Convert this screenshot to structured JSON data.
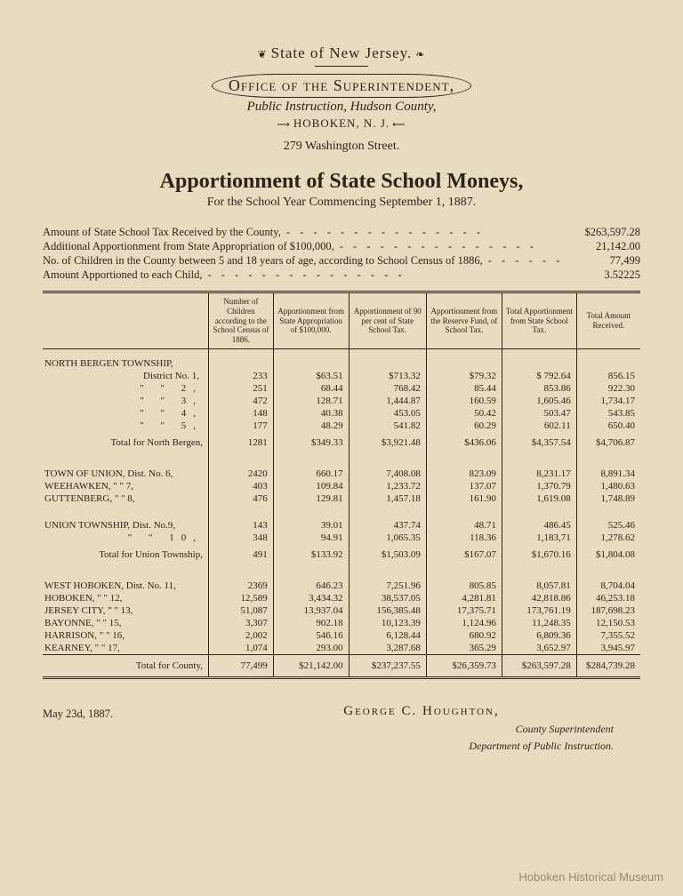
{
  "header": {
    "state": "State of New Jersey.",
    "office": "Office of the Superintendent,",
    "office_sub": "Public Instruction, Hudson County,",
    "city": "HOBOKEN, N. J.",
    "address": "279 Washington Street."
  },
  "title": "Apportionment of State School Moneys,",
  "subtitle": "For the School Year Commencing September 1, 1887.",
  "summary": [
    {
      "label": "Amount of State School Tax Received by the County,",
      "value": "$263,597.28"
    },
    {
      "label": "Additional Apportionment from State Appropriation of $100,000,",
      "value": "21,142.00"
    },
    {
      "label": "No. of Children in the County between 5 and 18 years of age, according to School Census of 1886,",
      "value": "77,499"
    },
    {
      "label": "Amount Apportioned to each Child,",
      "value": "3.52225"
    }
  ],
  "columns": [
    "",
    "Number of Children according to the School Census of 1886.",
    "Apportionment from State Appropriation of $100,000.",
    "Apportionment of 90 per cent of State School Tax.",
    "Apportionment from the Reserve Fund, of School Tax.",
    "Total Apportionment from State School Tax.",
    "Total Amount Received."
  ],
  "sections": [
    {
      "label": "NORTH BERGEN TOWNSHIP,",
      "rows": [
        {
          "name": "District No. 1,",
          "c": [
            "233",
            "$63.51",
            "$713.32",
            "$79.32",
            "$ 792.64",
            "856.15"
          ]
        },
        {
          "name": "\"   \"   2,",
          "c": [
            "251",
            "68.44",
            "768.42",
            "85.44",
            "853.86",
            "922.30"
          ]
        },
        {
          "name": "\"   \"   3,",
          "c": [
            "472",
            "128.71",
            "1,444.87",
            "160.59",
            "1,605.46",
            "1,734.17"
          ]
        },
        {
          "name": "\"   \"   4,",
          "c": [
            "148",
            "40.38",
            "453.05",
            "50.42",
            "503.47",
            "543.85"
          ]
        },
        {
          "name": "\"   \"   5,",
          "c": [
            "177",
            "48.29",
            "541.82",
            "60.29",
            "602.11",
            "650.40"
          ]
        }
      ],
      "total": {
        "name": "Total for North Bergen,",
        "c": [
          "1281",
          "$349.33",
          "$3,921.48",
          "$436.06",
          "$4,357.54",
          "$4,706.87"
        ]
      }
    },
    {
      "label": "",
      "rows": [
        {
          "name": "TOWN OF UNION, Dist. No. 6,",
          "c": [
            "2420",
            "660.17",
            "7,408.08",
            "823.09",
            "8,231.17",
            "8,891.34"
          ]
        },
        {
          "name": "WEEHAWKEN,   \"   \"   7,",
          "c": [
            "403",
            "109.84",
            "1,233.72",
            "137.07",
            "1,370.79",
            "1,480.63"
          ]
        },
        {
          "name": "GUTTENBERG,   \"   \"   8,",
          "c": [
            "476",
            "129.81",
            "1,457.18",
            "161.90",
            "1,619.08",
            "1,748.89"
          ]
        }
      ]
    },
    {
      "label": "",
      "rows": [
        {
          "name": "UNION TOWNSHIP, Dist. No.9,",
          "c": [
            "143",
            "39.01",
            "437.74",
            "48.71",
            "486.45",
            "525.46"
          ]
        },
        {
          "name": "\"   \"   10,",
          "c": [
            "348",
            "94.91",
            "1,065.35",
            "118.36",
            "1,183,71",
            "1,278.62"
          ]
        }
      ],
      "total": {
        "name": "Total for Union Township,",
        "c": [
          "491",
          "$133.92",
          "$1,503.09",
          "$167.07",
          "$1,670.16",
          "$1,804.08"
        ]
      }
    },
    {
      "label": "",
      "rows": [
        {
          "name": "WEST HOBOKEN, Dist. No. 11,",
          "c": [
            "2369",
            "646.23",
            "7,251.96",
            "805.85",
            "8,057.81",
            "8,704.04"
          ]
        },
        {
          "name": "HOBOKEN,   \"   \"   12,",
          "c": [
            "12,589",
            "3,434.32",
            "38,537.05",
            "4,281.81",
            "42,818.86",
            "46,253.18"
          ]
        },
        {
          "name": "JERSEY CITY,   \"   \"   13,",
          "c": [
            "51,087",
            "13,937.04",
            "156,385.48",
            "17,375.71",
            "173,761.19",
            "187,698.23"
          ]
        },
        {
          "name": "BAYONNE,   \"   \"   15,",
          "c": [
            "3,307",
            "902.18",
            "10,123.39",
            "1,124.96",
            "11,248.35",
            "12,150.53"
          ]
        },
        {
          "name": "HARRISON,   \"   \"   16,",
          "c": [
            "2,002",
            "546.16",
            "6,128.44",
            "680.92",
            "6,809.36",
            "7,355.52"
          ]
        },
        {
          "name": "KEARNEY,   \"   \"   17,",
          "c": [
            "1,074",
            "293.00",
            "3,287.68",
            "365.29",
            "3,652.97",
            "3,945.97"
          ]
        }
      ]
    }
  ],
  "county_total": {
    "name": "Total for County,",
    "c": [
      "77,499",
      "$21,142.00",
      "$237,237.55",
      "$26,359.73",
      "$263,597.28",
      "$284,739.28"
    ]
  },
  "footer": {
    "date": "May 23d, 1887.",
    "sig": "George C. Houghton,",
    "role1": "County Superintendent",
    "role2": "Department of Public Instruction."
  },
  "watermark": "Hoboken Historical Museum"
}
